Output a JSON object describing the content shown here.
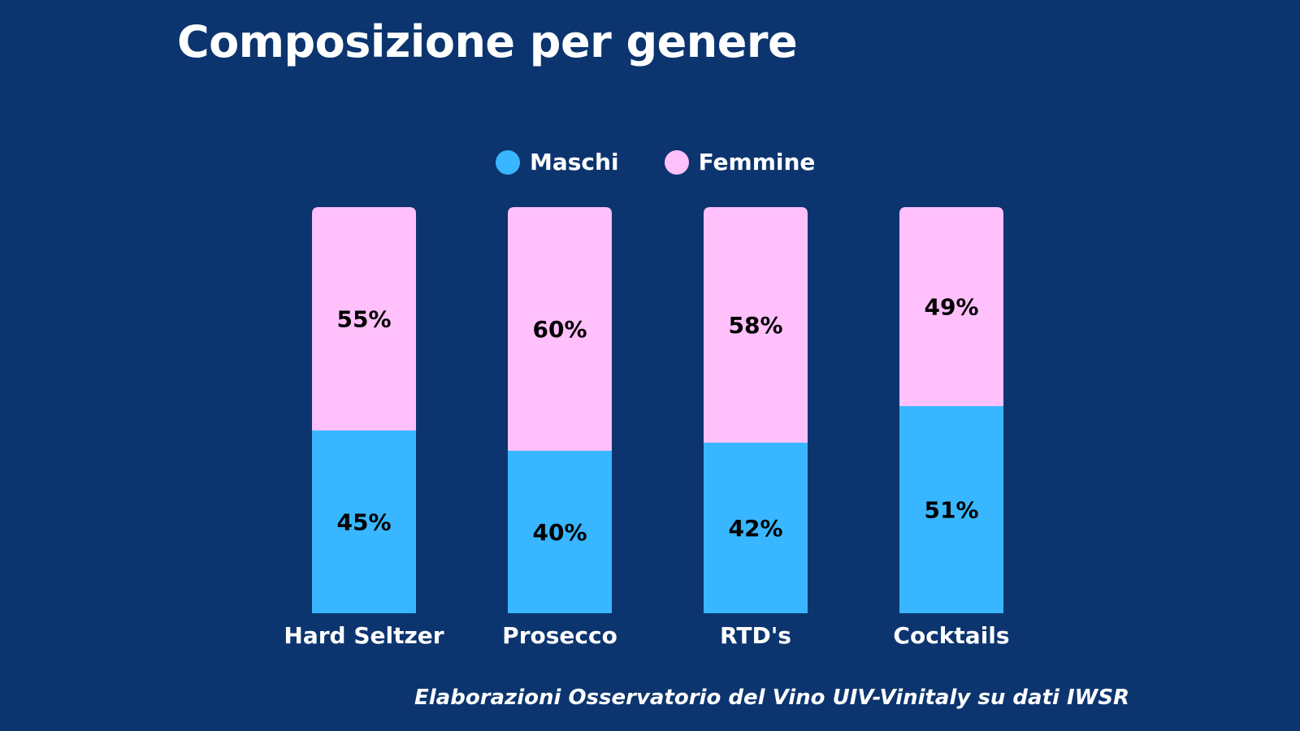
{
  "header": {
    "title": "Composizione per genere"
  },
  "footer": {
    "source": "Elaborazioni Osservatorio del Vino UIV-Vinitaly su dati IWSR"
  },
  "colors": {
    "background": "#0c356f",
    "maschi": "#38b6ff",
    "femmine": "#ffc0fb",
    "text": "#ffffff",
    "value_text": "#000000"
  },
  "chart_data": {
    "type": "bar",
    "stacked": true,
    "categories": [
      "Hard Seltzer",
      "Prosecco",
      "RTD's",
      "Cocktails"
    ],
    "series": [
      {
        "name": "Maschi",
        "values": [
          45,
          40,
          42,
          51
        ]
      },
      {
        "name": "Femmine",
        "values": [
          55,
          60,
          58,
          49
        ]
      }
    ],
    "value_suffix": "%",
    "ylim": [
      0,
      100
    ],
    "grid": false,
    "legend_position": "top-center"
  }
}
